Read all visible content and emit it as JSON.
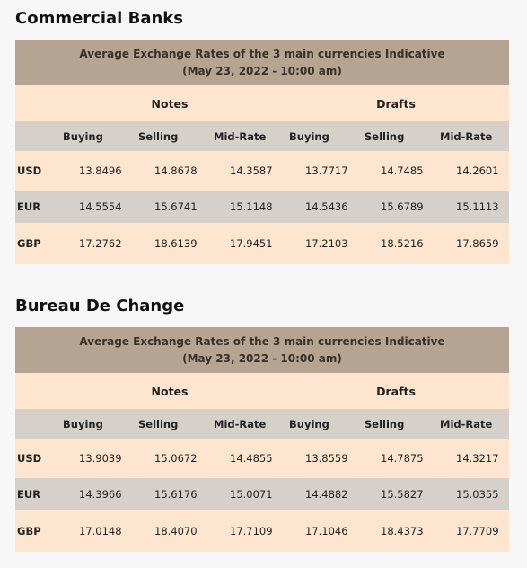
{
  "sections": [
    {
      "title": "Commercial Banks",
      "caption": [
        "Average Exchange Rates of the 3 main currencies Indicative",
        "(May 23, 2022 - 10:00 am)"
      ],
      "groups": [
        "Notes",
        "Drafts"
      ],
      "columns": [
        "Buying",
        "Selling",
        "Mid-Rate",
        "Buying",
        "Selling",
        "Mid-Rate"
      ],
      "rows": [
        [
          "USD",
          "13.8496",
          "14.8678",
          "14.3587",
          "13.7717",
          "14.7485",
          "14.2601"
        ],
        [
          "EUR",
          "14.5554",
          "15.6741",
          "15.1148",
          "14.5436",
          "15.6789",
          "15.1113"
        ],
        [
          "GBP",
          "17.2762",
          "18.6139",
          "17.9451",
          "17.2103",
          "18.5216",
          "17.8659"
        ]
      ]
    },
    {
      "title": "Bureau De Change",
      "caption": [
        "Average Exchange Rates of the 3 main currencies Indicative",
        "(May 23, 2022 - 10:00 am)"
      ],
      "groups": [
        "Notes",
        "Drafts"
      ],
      "columns": [
        "Buying",
        "Selling",
        "Mid-Rate",
        "Buying",
        "Selling",
        "Mid-Rate"
      ],
      "rows": [
        [
          "USD",
          "13.9039",
          "15.0672",
          "14.4855",
          "13.8559",
          "14.7875",
          "14.3217"
        ],
        [
          "EUR",
          "14.3966",
          "15.6176",
          "15.0071",
          "14.4882",
          "15.5827",
          "15.0355"
        ],
        [
          "GBP",
          "17.0148",
          "18.4070",
          "17.7109",
          "17.1046",
          "18.4373",
          "17.7709"
        ]
      ]
    }
  ]
}
